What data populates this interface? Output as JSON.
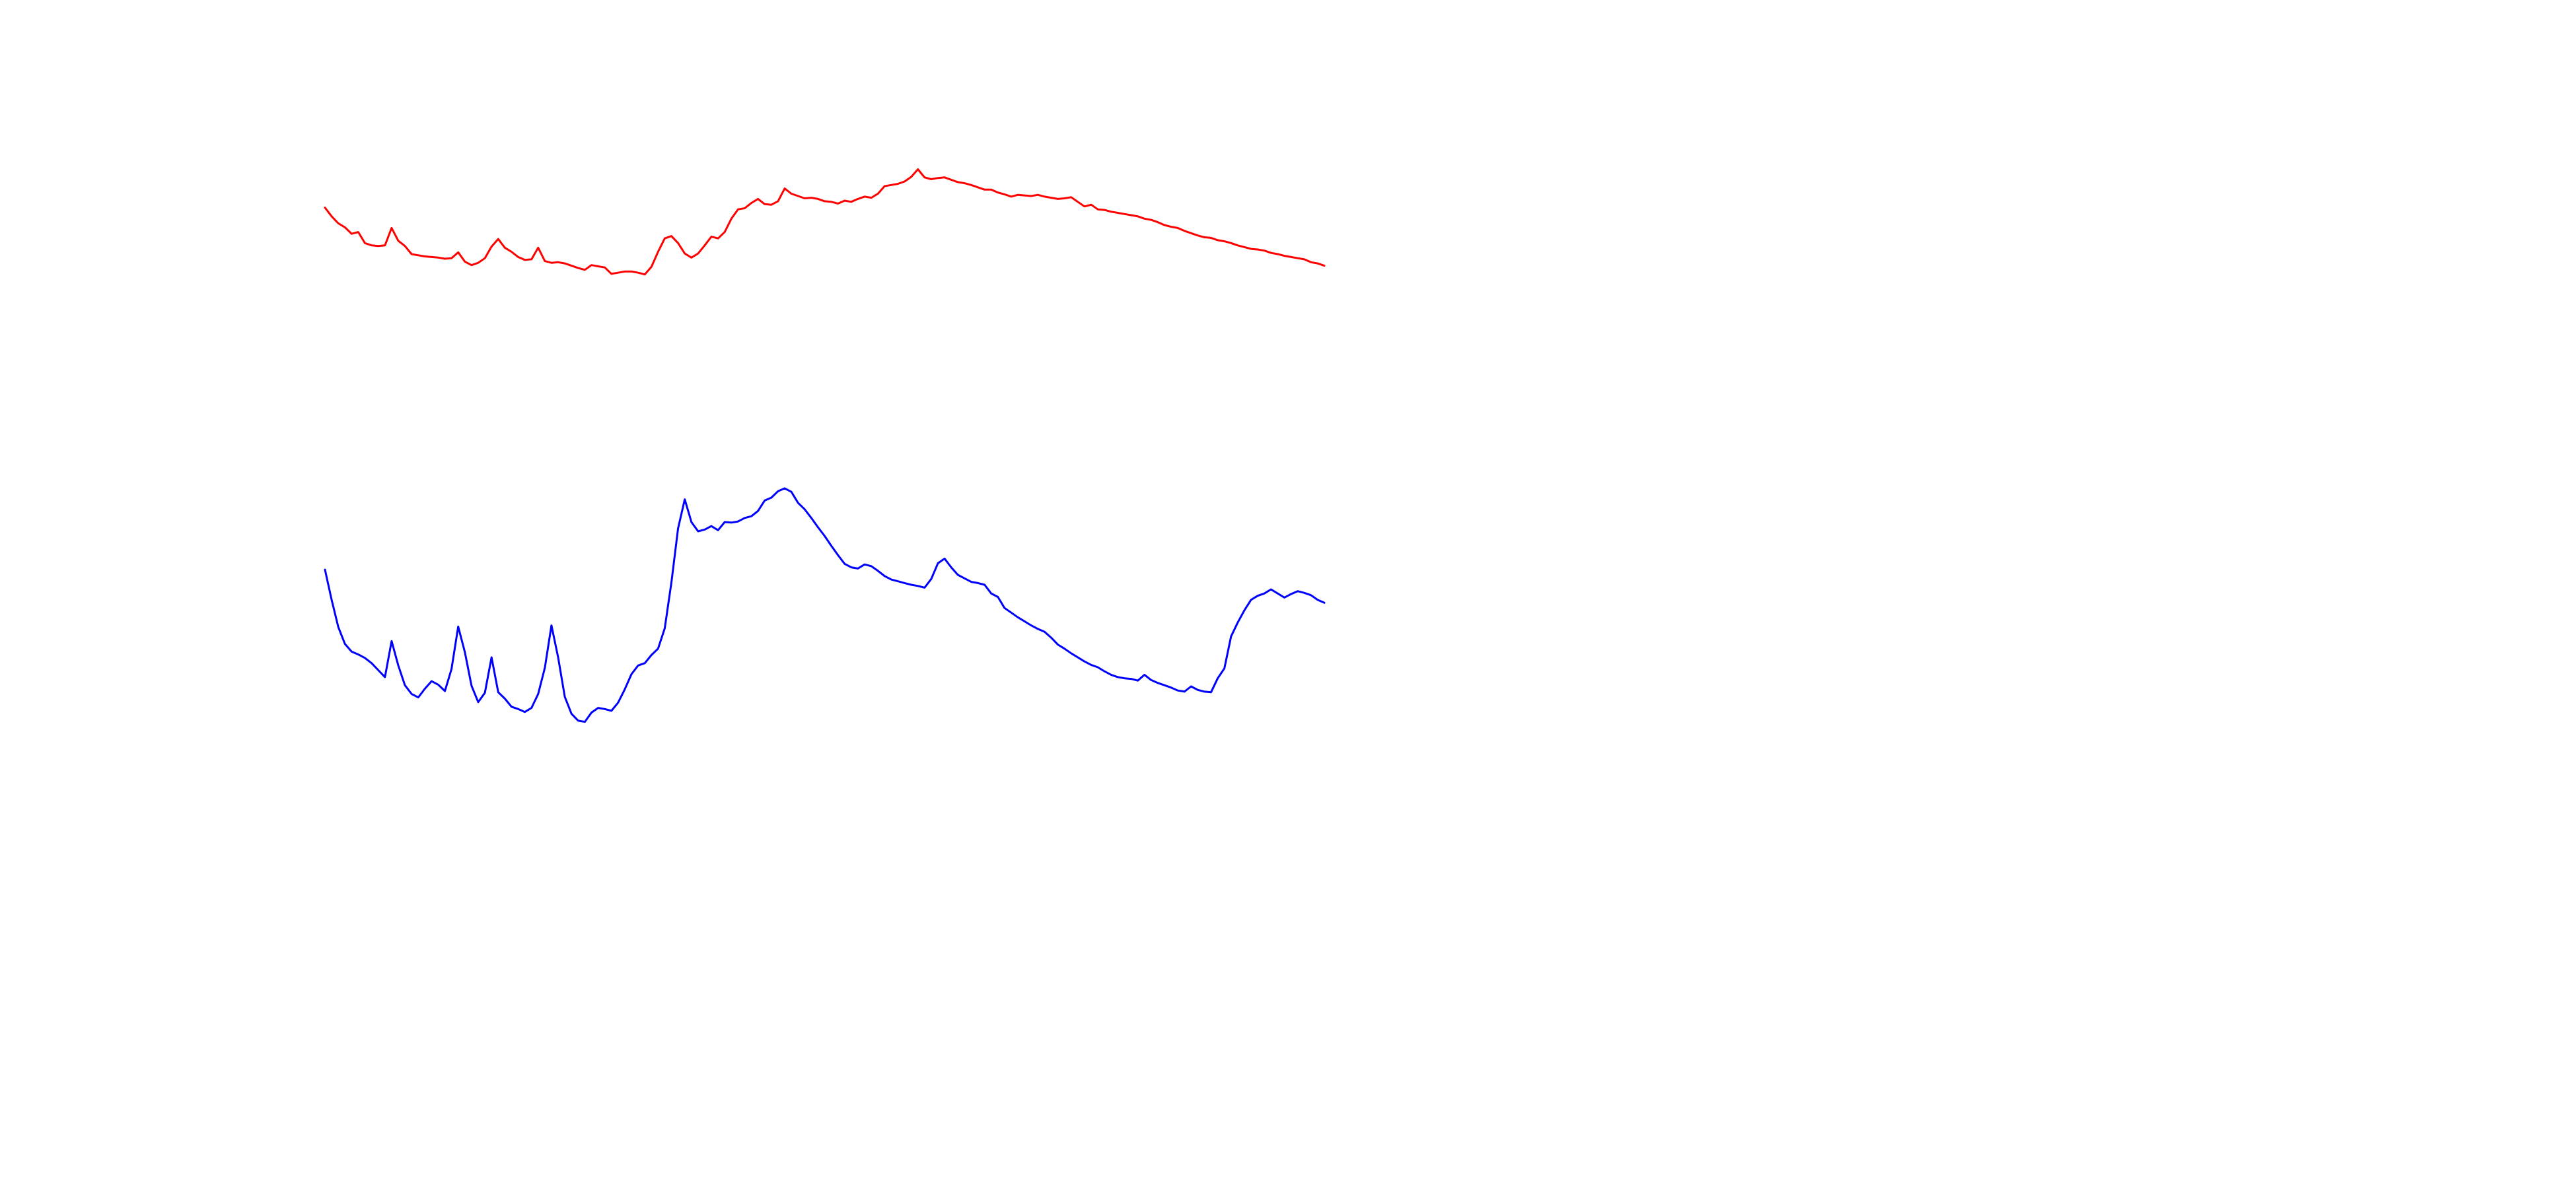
{
  "chart_data": {
    "type": "line",
    "title": "",
    "xlabel": "",
    "ylabel": "",
    "grid": false,
    "legend": "none",
    "xlim": [
      0,
      150
    ],
    "ylim": [
      0,
      100
    ],
    "series": [
      {
        "color": "#ff0000",
        "values": [
          95.5,
          94.0,
          92.8,
          92.1,
          91.0,
          91.3,
          89.4,
          89.0,
          88.9,
          89.0,
          92.0,
          89.8,
          88.9,
          87.5,
          87.3,
          87.1,
          87.0,
          86.9,
          86.7,
          86.8,
          87.8,
          86.2,
          85.6,
          86.0,
          86.8,
          88.8,
          90.1,
          88.6,
          87.9,
          87.0,
          86.5,
          86.6,
          88.6,
          86.3,
          86.0,
          86.1,
          85.9,
          85.5,
          85.1,
          84.8,
          85.6,
          85.4,
          85.2,
          84.1,
          84.3,
          84.5,
          84.5,
          84.3,
          84.0,
          85.3,
          87.9,
          90.2,
          90.6,
          89.4,
          87.6,
          86.9,
          87.6,
          89.0,
          90.5,
          90.2,
          91.3,
          93.6,
          95.2,
          95.4,
          96.3,
          97.0,
          96.1,
          96.0,
          96.6,
          98.8,
          97.9,
          97.5,
          97.1,
          97.2,
          97.0,
          96.6,
          96.5,
          96.2,
          96.7,
          96.5,
          97.0,
          97.4,
          97.2,
          97.9,
          99.2,
          99.4,
          99.6,
          100.0,
          100.8,
          102.1,
          100.7,
          100.4,
          100.6,
          100.7,
          100.3,
          99.9,
          99.7,
          99.4,
          99.0,
          98.6,
          98.6,
          98.1,
          97.8,
          97.4,
          97.7,
          97.6,
          97.5,
          97.7,
          97.4,
          97.2,
          97.0,
          97.1,
          97.3,
          96.5,
          95.7,
          96.0,
          95.2,
          95.1,
          94.8,
          94.6,
          94.4,
          94.2,
          94.0,
          93.6,
          93.4,
          93.0,
          92.5,
          92.2,
          92.0,
          91.5,
          91.1,
          90.7,
          90.4,
          90.3,
          89.9,
          89.7,
          89.4,
          89.0,
          88.7,
          88.4,
          88.3,
          88.1,
          87.7,
          87.5,
          87.2,
          87.0,
          86.8,
          86.6,
          86.1,
          85.9,
          85.5
        ]
      },
      {
        "color": "#0000ff",
        "values": [
          70.1,
          64.9,
          60.2,
          57.3,
          56.0,
          55.5,
          54.9,
          54.0,
          52.8,
          51.6,
          57.8,
          53.6,
          50.2,
          48.7,
          48.1,
          49.6,
          50.9,
          50.3,
          49.2,
          53.0,
          60.3,
          55.9,
          50.1,
          47.3,
          48.9,
          55.0,
          49.0,
          47.9,
          46.5,
          46.1,
          45.6,
          46.3,
          48.7,
          53.2,
          60.5,
          55.0,
          48.2,
          45.3,
          44.1,
          43.9,
          45.5,
          46.3,
          46.1,
          45.8,
          47.2,
          49.5,
          52.1,
          53.6,
          54.0,
          55.4,
          56.5,
          60.0,
          67.9,
          77.2,
          82.2,
          78.3,
          76.7,
          77.0,
          77.6,
          76.9,
          78.3,
          78.2,
          78.4,
          79.0,
          79.3,
          80.2,
          82.0,
          82.5,
          83.6,
          84.1,
          83.5,
          81.6,
          80.5,
          79.0,
          77.4,
          75.9,
          74.2,
          72.6,
          71.1,
          70.5,
          70.3,
          71.0,
          70.7,
          69.9,
          69.0,
          68.4,
          68.1,
          67.8,
          67.5,
          67.3,
          67.0,
          68.5,
          71.2,
          72.0,
          70.5,
          69.2,
          68.6,
          68.0,
          67.8,
          67.5,
          66.0,
          65.4,
          63.5,
          62.7,
          61.9,
          61.2,
          60.5,
          59.9,
          59.4,
          58.4,
          57.2,
          56.5,
          55.7,
          55.0,
          54.3,
          53.7,
          53.3,
          52.6,
          52.0,
          51.6,
          51.4,
          51.3,
          51.0,
          52.0,
          51.1,
          50.6,
          50.2,
          49.8,
          49.3,
          49.1,
          50.0,
          49.4,
          49.1,
          49.0,
          51.4,
          53.1,
          58.6,
          61.0,
          63.1,
          64.9,
          65.6,
          66.0,
          66.7,
          66.0,
          65.3,
          65.9,
          66.4,
          66.1,
          65.7,
          64.9,
          64.4
        ]
      }
    ]
  }
}
